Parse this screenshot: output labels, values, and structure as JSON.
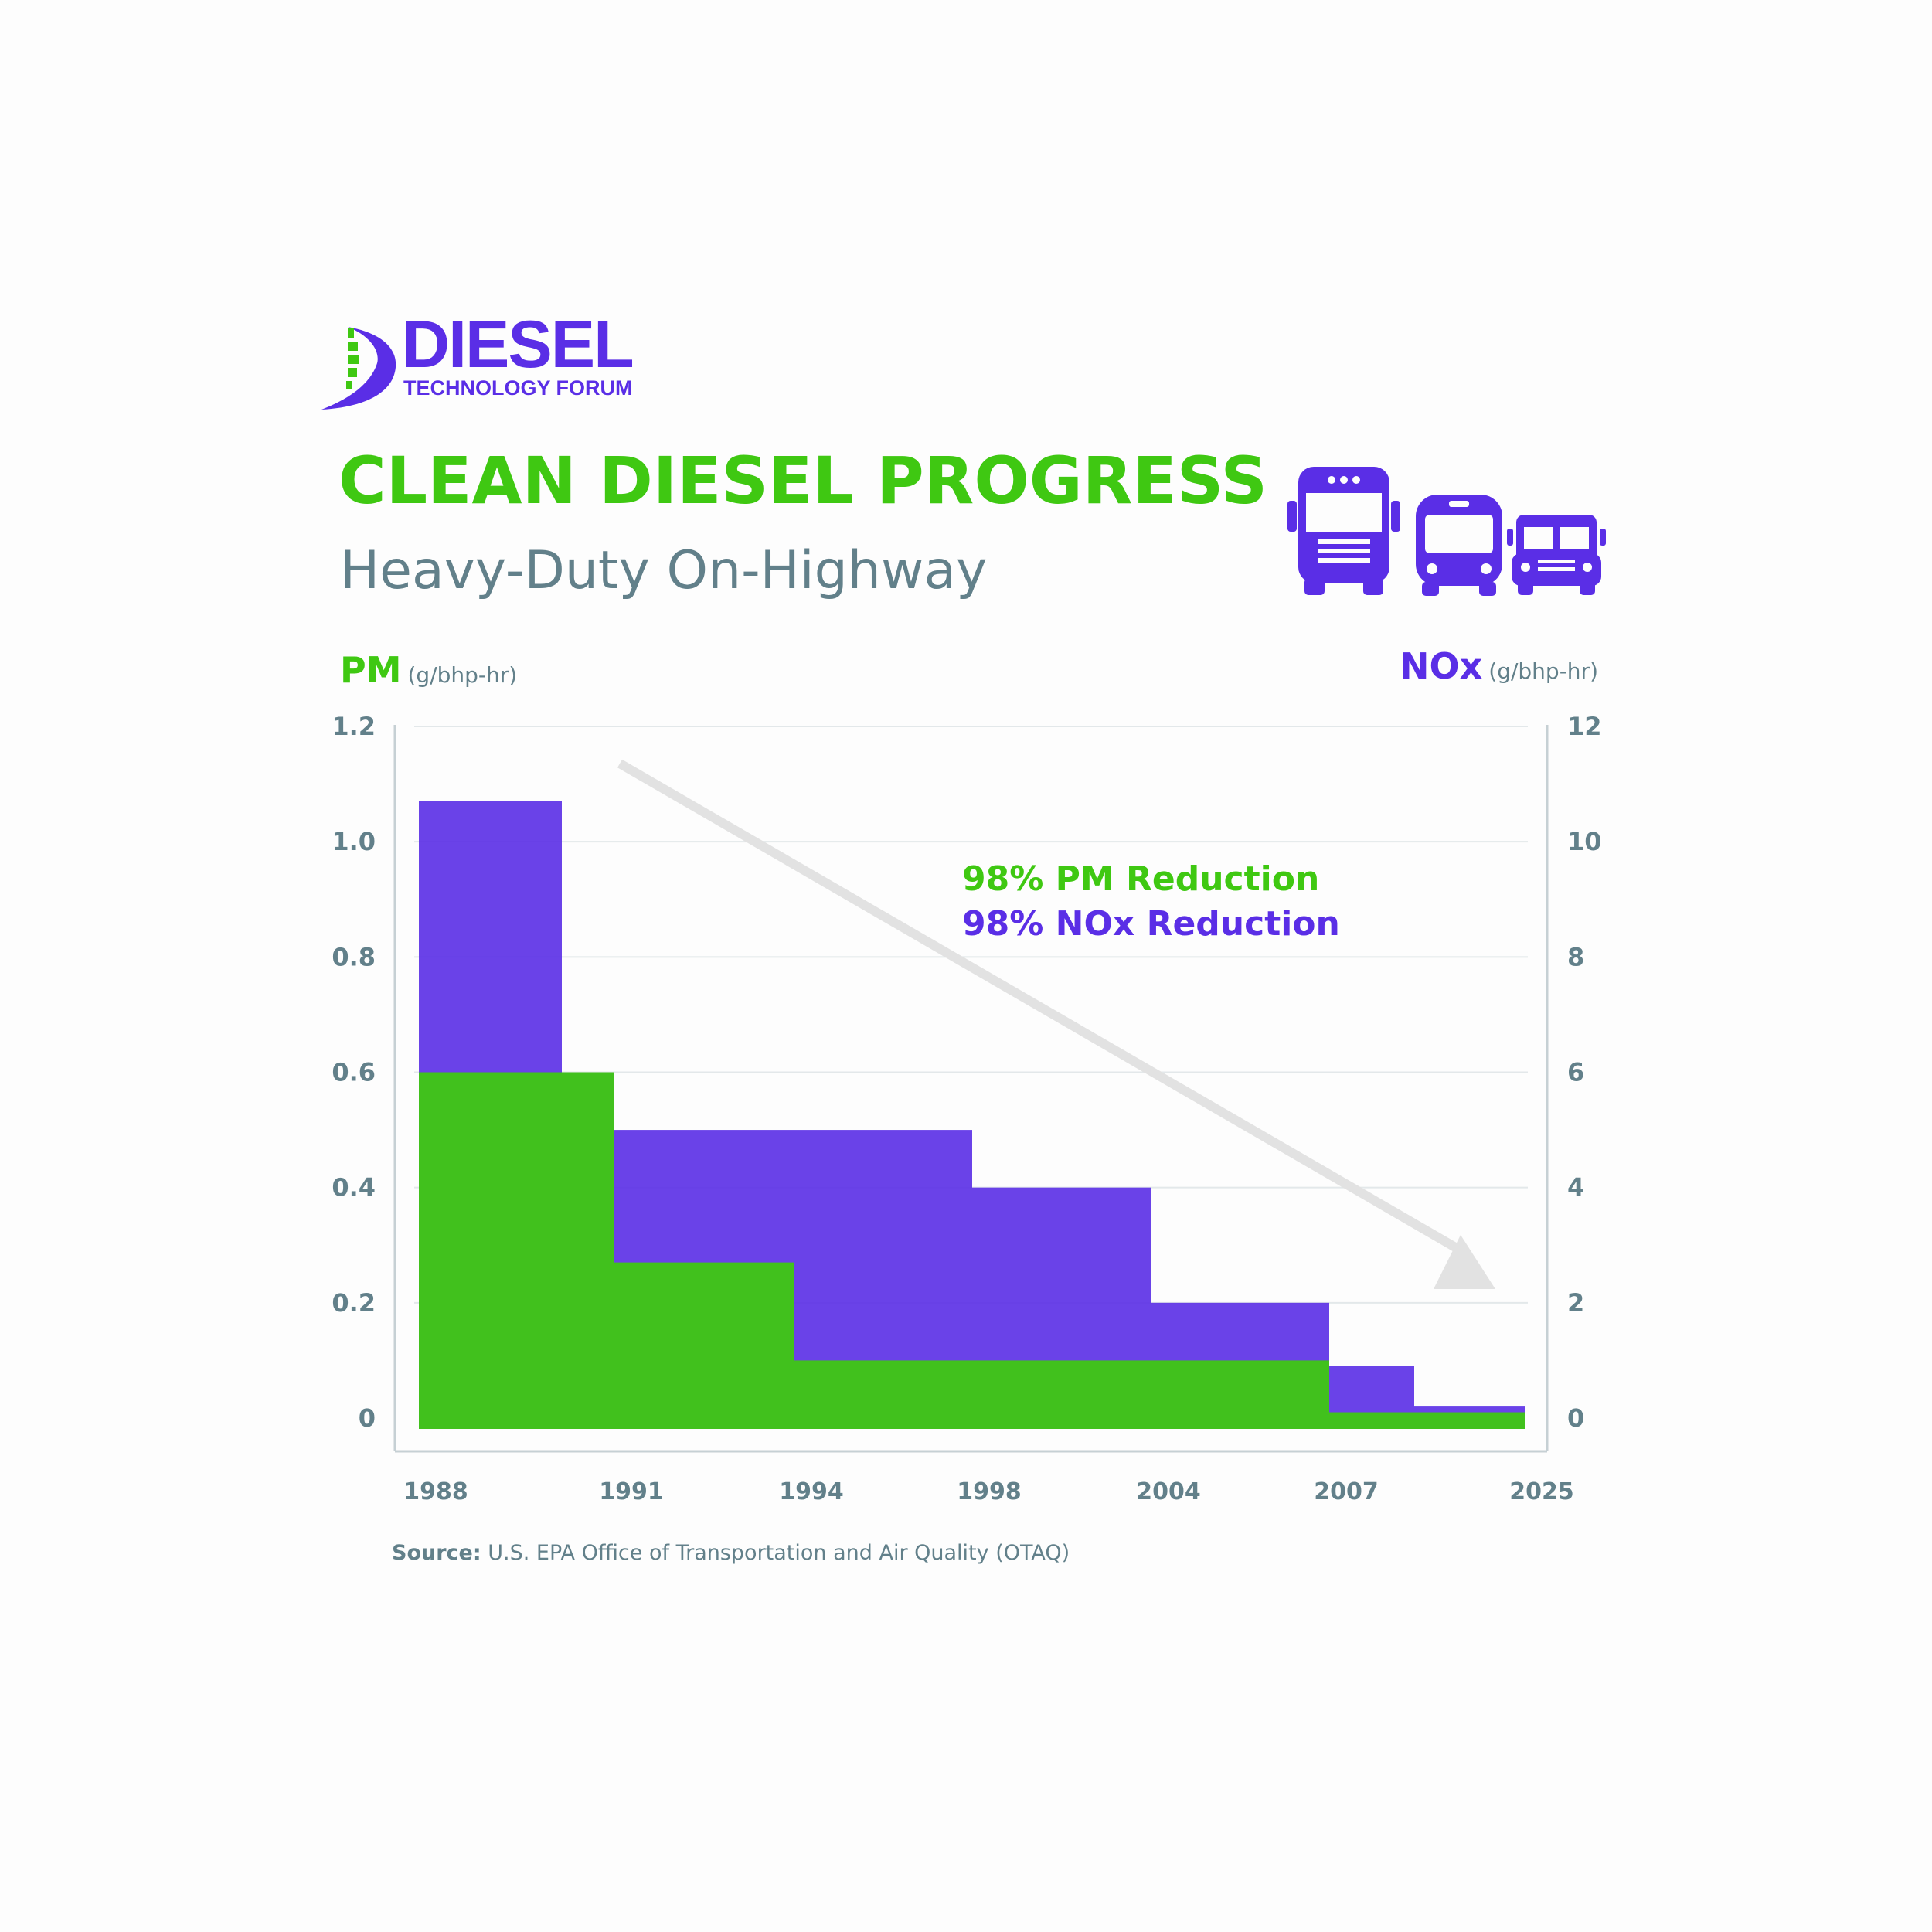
{
  "logo": {
    "word": "DIESEL",
    "sub": "TECHNOLOGY FORUM"
  },
  "header": {
    "title": "CLEAN DIESEL PROGRESS",
    "subtitle": "Heavy-Duty On-Highway"
  },
  "axes": {
    "left": {
      "name": "PM",
      "unit": "(g/bhp-hr)"
    },
    "right": {
      "name": "NOx",
      "unit": "(g/bhp-hr)"
    }
  },
  "annotations": {
    "pm_reduction": "98% PM Reduction",
    "nox_reduction": "98% NOx Reduction"
  },
  "source": {
    "label": "Source:",
    "text": "U.S. EPA Office of Transportation and Air Quality (OTAQ)"
  },
  "colors": {
    "pm": "#3fc812",
    "nox": "#5a2ee6",
    "grid": "#e3e8ea",
    "axis": "#c6d0d4",
    "tick": "#62808a",
    "arrow": "#e2e2e2"
  },
  "icons": [
    "truck-icon",
    "transit-bus-icon",
    "school-bus-icon"
  ],
  "chart_data": {
    "type": "bar",
    "x_ticks": [
      "1988",
      "1991",
      "1994",
      "1998",
      "2004",
      "2007",
      "2025"
    ],
    "y_left_ticks": [
      "0",
      "0.2",
      "0.4",
      "0.6",
      "0.8",
      "1.0",
      "1.2"
    ],
    "y_right_ticks": [
      "0",
      "2",
      "4",
      "6",
      "8",
      "10",
      "12"
    ],
    "ylim_left": [
      0,
      1.2
    ],
    "ylim_right": [
      0,
      12
    ],
    "grid": true,
    "series": [
      {
        "name": "NOx",
        "axis": "right",
        "steps": [
          {
            "from": "1988",
            "to": "1990",
            "value": 10.7
          },
          {
            "from": "1990",
            "to": "1991",
            "value": 6.0
          },
          {
            "from": "1991",
            "to": "1998",
            "value": 5.0
          },
          {
            "from": "1998",
            "to": "2004",
            "value": 4.0
          },
          {
            "from": "2004",
            "to": "2007",
            "value": 2.0
          },
          {
            "from": "2007",
            "to": "2010",
            "value": 0.9
          },
          {
            "from": "2010",
            "to": "2025",
            "value": 0.2
          }
        ]
      },
      {
        "name": "PM",
        "axis": "left",
        "steps": [
          {
            "from": "1988",
            "to": "1991",
            "value": 0.6
          },
          {
            "from": "1991",
            "to": "1994",
            "value": 0.27
          },
          {
            "from": "1994",
            "to": "2007",
            "value": 0.1
          },
          {
            "from": "2007",
            "to": "2025",
            "value": 0.01
          }
        ]
      }
    ]
  }
}
